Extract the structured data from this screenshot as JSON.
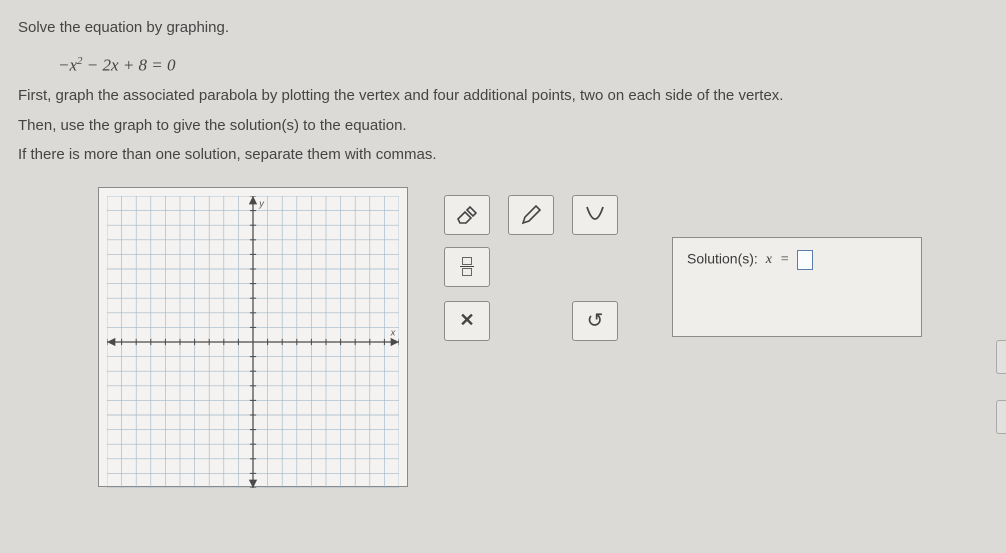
{
  "problem": {
    "line1": "Solve the equation by graphing.",
    "equation_html": "−x² − 2x + 8 = 0",
    "line2": "First, graph the associated parabola by plotting the vertex and four additional points, two on each side of the vertex.",
    "line3a": "Then, use the graph to give the solution(s) to the equation.",
    "line3b": "If there is more than one solution, separate them with commas."
  },
  "graph": {
    "x_min": -10,
    "x_max": 10,
    "y_min": -10,
    "y_max": 10,
    "grid_step": 1,
    "grid_color": "#9fb7c9",
    "axis_color": "#4a4a4a",
    "bg_color": "#f4f3f1",
    "x_label": "x",
    "y_label": "y"
  },
  "tools": {
    "eraser_title": "Eraser",
    "pencil_title": "Pencil",
    "curve_title": "Parabola",
    "fraction_title": "Fraction",
    "fraction_text_top": "□",
    "fraction_text_bot": "□",
    "clear_label": "✕",
    "clear_title": "Clear",
    "undo_label": "↺",
    "undo_title": "Undo"
  },
  "solution": {
    "label": "Solution(s):",
    "var": "x",
    "equals": "=",
    "value": ""
  },
  "colors": {
    "page_bg": "#dcdad6",
    "panel_bg": "#efeeeb",
    "border": "#8b8b8b",
    "text": "#3a3a3a"
  }
}
